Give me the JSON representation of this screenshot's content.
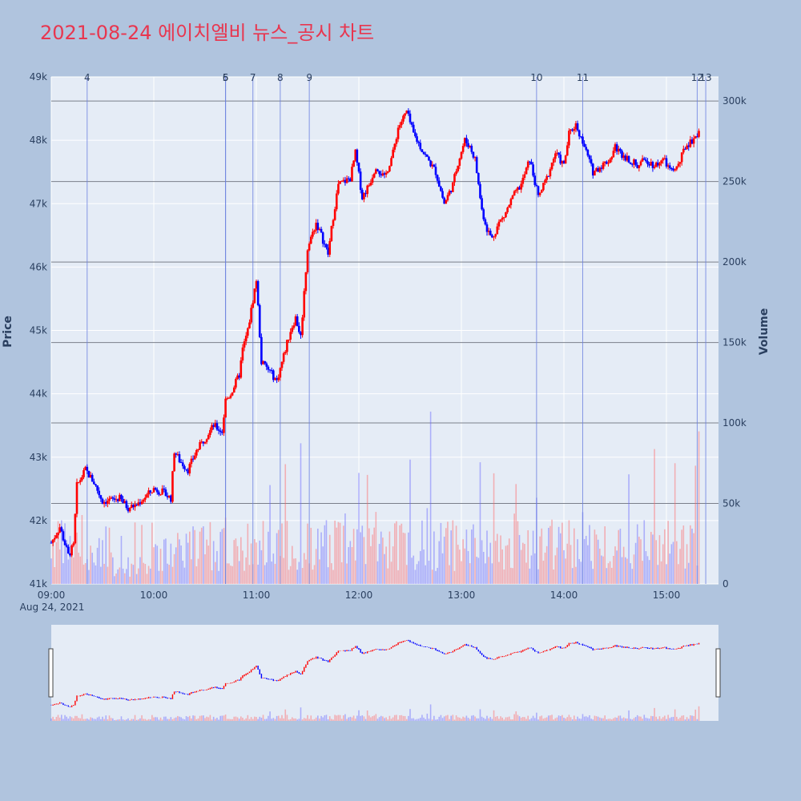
{
  "chart_data": {
    "type": "candlestick",
    "title": "2021-08-24 에이치엘비 뉴스_공시 차트",
    "y_label": "Price",
    "y2_label": "Volume",
    "x_start_label": "Aug 24, 2021",
    "x_ticks": [
      "09:00",
      "10:00",
      "11:00",
      "12:00",
      "13:00",
      "14:00",
      "15:00"
    ],
    "y_ticks": [
      "41k",
      "42k",
      "43k",
      "44k",
      "45k",
      "46k",
      "47k",
      "48k",
      "49k"
    ],
    "y_range": [
      41000,
      49000
    ],
    "y2_ticks": [
      "0",
      "50k",
      "100k",
      "150k",
      "200k",
      "250k",
      "300k"
    ],
    "y2_range": [
      0,
      315000
    ],
    "up_color": "#ff0000",
    "down_color": "#0000ff",
    "price_path": [
      [
        "09:00",
        41650
      ],
      [
        "09:05",
        41900
      ],
      [
        "09:10",
        41450
      ],
      [
        "09:13",
        41600
      ],
      [
        "09:15",
        42550
      ],
      [
        "09:20",
        42800
      ],
      [
        "09:25",
        42600
      ],
      [
        "09:30",
        42300
      ],
      [
        "09:40",
        42350
      ],
      [
        "09:45",
        42200
      ],
      [
        "09:50",
        42250
      ],
      [
        "10:00",
        42500
      ],
      [
        "10:05",
        42450
      ],
      [
        "10:10",
        42350
      ],
      [
        "10:12",
        43100
      ],
      [
        "10:15",
        42950
      ],
      [
        "10:20",
        42800
      ],
      [
        "10:25",
        43100
      ],
      [
        "10:30",
        43300
      ],
      [
        "10:35",
        43500
      ],
      [
        "10:40",
        43400
      ],
      [
        "10:42",
        43900
      ],
      [
        "10:45",
        44000
      ],
      [
        "10:50",
        44300
      ],
      [
        "10:52",
        44700
      ],
      [
        "10:55",
        45000
      ],
      [
        "11:00",
        45800
      ],
      [
        "11:03",
        44500
      ],
      [
        "11:08",
        44350
      ],
      [
        "11:12",
        44200
      ],
      [
        "11:15",
        44500
      ],
      [
        "11:20",
        45000
      ],
      [
        "11:23",
        45200
      ],
      [
        "11:26",
        44900
      ],
      [
        "11:30",
        46300
      ],
      [
        "11:35",
        46700
      ],
      [
        "11:38",
        46500
      ],
      [
        "11:42",
        46200
      ],
      [
        "11:45",
        46800
      ],
      [
        "11:48",
        47300
      ],
      [
        "11:55",
        47400
      ],
      [
        "11:58",
        47800
      ],
      [
        "12:02",
        47100
      ],
      [
        "12:06",
        47300
      ],
      [
        "12:10",
        47600
      ],
      [
        "12:15",
        47400
      ],
      [
        "12:20",
        47800
      ],
      [
        "12:23",
        48200
      ],
      [
        "12:28",
        48450
      ],
      [
        "12:32",
        48100
      ],
      [
        "12:38",
        47800
      ],
      [
        "12:45",
        47500
      ],
      [
        "12:50",
        47000
      ],
      [
        "12:55",
        47300
      ],
      [
        "12:58",
        47650
      ],
      [
        "13:02",
        48000
      ],
      [
        "13:05",
        47900
      ],
      [
        "13:08",
        47700
      ],
      [
        "13:12",
        46900
      ],
      [
        "13:15",
        46600
      ],
      [
        "13:18",
        46450
      ],
      [
        "13:22",
        46700
      ],
      [
        "13:25",
        46800
      ],
      [
        "13:30",
        47100
      ],
      [
        "13:35",
        47300
      ],
      [
        "13:40",
        47700
      ],
      [
        "13:45",
        47100
      ],
      [
        "13:50",
        47400
      ],
      [
        "13:55",
        47800
      ],
      [
        "14:00",
        47600
      ],
      [
        "14:03",
        48100
      ],
      [
        "14:07",
        48250
      ],
      [
        "14:12",
        47900
      ],
      [
        "14:17",
        47500
      ],
      [
        "14:22",
        47600
      ],
      [
        "14:27",
        47700
      ],
      [
        "14:30",
        47900
      ],
      [
        "14:33",
        47800
      ],
      [
        "14:38",
        47700
      ],
      [
        "14:43",
        47600
      ],
      [
        "14:48",
        47700
      ],
      [
        "14:53",
        47600
      ],
      [
        "14:58",
        47700
      ],
      [
        "15:03",
        47500
      ],
      [
        "15:07",
        47600
      ],
      [
        "15:11",
        47900
      ],
      [
        "15:15",
        48000
      ],
      [
        "15:19",
        48150
      ]
    ],
    "news_markers": [
      {
        "label": "4",
        "time": "09:21"
      },
      {
        "label": "5",
        "time": "10:42"
      },
      {
        "label": "6",
        "time": "10:42"
      },
      {
        "label": "7",
        "time": "10:58"
      },
      {
        "label": "8",
        "time": "11:14"
      },
      {
        "label": "9",
        "time": "11:31"
      },
      {
        "label": "10",
        "time": "13:44"
      },
      {
        "label": "11",
        "time": "14:11"
      },
      {
        "label": "12",
        "time": "15:18"
      },
      {
        "label": "13",
        "time": "15:23"
      }
    ]
  }
}
